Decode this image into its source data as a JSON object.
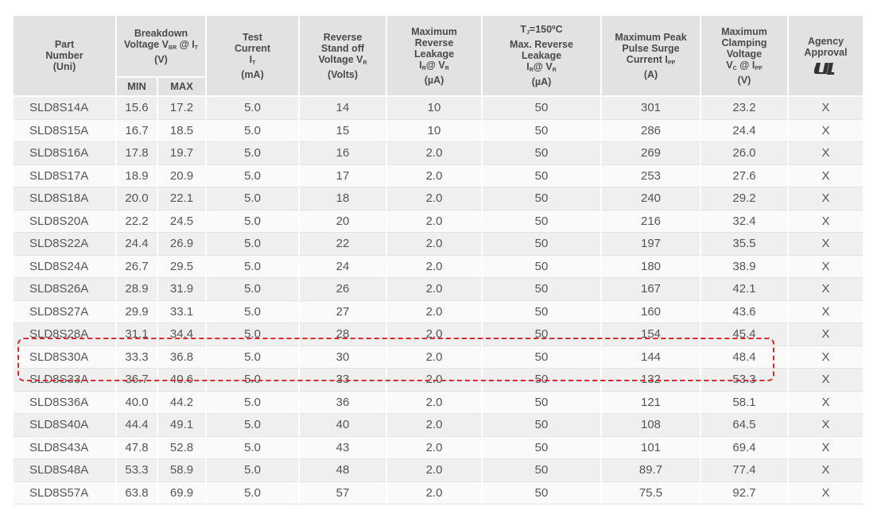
{
  "header": {
    "columns": [
      {
        "lines": [
          [
            {
              "t": "Part"
            }
          ],
          [
            {
              "t": "Number"
            }
          ],
          [
            {
              "t": "(Uni)"
            }
          ]
        ]
      },
      {
        "lines": [
          [
            {
              "t": "Breakdown"
            }
          ],
          [
            {
              "t": "Voltage V"
            },
            {
              "t": "BR",
              "sub": true
            },
            {
              "t": " @ I"
            },
            {
              "t": "T",
              "sub": true
            }
          ],
          [
            {
              "t": "(V)"
            }
          ]
        ]
      },
      {
        "lines": [
          [
            {
              "t": "Test"
            }
          ],
          [
            {
              "t": "Current"
            }
          ],
          [
            {
              "t": "I"
            },
            {
              "t": "T",
              "sub": true
            }
          ],
          [
            {
              "t": "(mA)"
            }
          ]
        ]
      },
      {
        "lines": [
          [
            {
              "t": "Reverse"
            }
          ],
          [
            {
              "t": "Stand off"
            }
          ],
          [
            {
              "t": "Voltage V"
            },
            {
              "t": "R",
              "sub": true
            }
          ],
          [
            {
              "t": "(Volts)"
            }
          ]
        ]
      },
      {
        "lines": [
          [
            {
              "t": "Maximum"
            }
          ],
          [
            {
              "t": "Reverse"
            }
          ],
          [
            {
              "t": "Leakage"
            }
          ],
          [
            {
              "t": "I"
            },
            {
              "t": "R",
              "sub": true
            },
            {
              "t": "@ V"
            },
            {
              "t": "R",
              "sub": true
            }
          ],
          [
            {
              "t": "(µA)"
            }
          ]
        ]
      },
      {
        "lines": [
          [
            {
              "t": "T"
            },
            {
              "t": "J",
              "sub": true
            },
            {
              "t": "=150ºC"
            }
          ],
          [
            {
              "t": "Max. Reverse"
            }
          ],
          [
            {
              "t": "Leakage"
            }
          ],
          [
            {
              "t": "I"
            },
            {
              "t": "R",
              "sub": true
            },
            {
              "t": "@ V"
            },
            {
              "t": "R",
              "sub": true
            }
          ],
          [
            {
              "t": "(µA)"
            }
          ]
        ]
      },
      {
        "lines": [
          [
            {
              "t": "Maximum Peak"
            }
          ],
          [
            {
              "t": "Pulse Surge"
            }
          ],
          [
            {
              "t": "Current I"
            },
            {
              "t": "PP",
              "sub": true
            }
          ],
          [
            {
              "t": "(A)"
            }
          ]
        ]
      },
      {
        "lines": [
          [
            {
              "t": "Maximum"
            }
          ],
          [
            {
              "t": "Clamping"
            }
          ],
          [
            {
              "t": "Voltage"
            }
          ],
          [
            {
              "t": "V"
            },
            {
              "t": "C",
              "sub": true
            },
            {
              "t": " @ I"
            },
            {
              "t": "PP",
              "sub": true
            }
          ],
          [
            {
              "t": "(V)"
            }
          ]
        ]
      },
      {
        "lines": [
          [
            {
              "t": "Agency"
            }
          ],
          [
            {
              "t": "Approval"
            }
          ]
        ]
      }
    ],
    "sub_columns": [
      "MIN",
      "MAX"
    ]
  },
  "table": {
    "rows": [
      [
        "SLD8S14A",
        "15.6",
        "17.2",
        "5.0",
        "14",
        "10",
        "50",
        "301",
        "23.2",
        "X"
      ],
      [
        "SLD8S15A",
        "16.7",
        "18.5",
        "5.0",
        "15",
        "10",
        "50",
        "286",
        "24.4",
        "X"
      ],
      [
        "SLD8S16A",
        "17.8",
        "19.7",
        "5.0",
        "16",
        "2.0",
        "50",
        "269",
        "26.0",
        "X"
      ],
      [
        "SLD8S17A",
        "18.9",
        "20.9",
        "5.0",
        "17",
        "2.0",
        "50",
        "253",
        "27.6",
        "X"
      ],
      [
        "SLD8S18A",
        "20.0",
        "22.1",
        "5.0",
        "18",
        "2.0",
        "50",
        "240",
        "29.2",
        "X"
      ],
      [
        "SLD8S20A",
        "22.2",
        "24.5",
        "5.0",
        "20",
        "2.0",
        "50",
        "216",
        "32.4",
        "X"
      ],
      [
        "SLD8S22A",
        "24.4",
        "26.9",
        "5.0",
        "22",
        "2.0",
        "50",
        "197",
        "35.5",
        "X"
      ],
      [
        "SLD8S24A",
        "26.7",
        "29.5",
        "5.0",
        "24",
        "2.0",
        "50",
        "180",
        "38.9",
        "X"
      ],
      [
        "SLD8S26A",
        "28.9",
        "31.9",
        "5.0",
        "26",
        "2.0",
        "50",
        "167",
        "42.1",
        "X"
      ],
      [
        "SLD8S27A",
        "29.9",
        "33.1",
        "5.0",
        "27",
        "2.0",
        "50",
        "160",
        "43.6",
        "X"
      ],
      [
        "SLD8S28A",
        "31.1",
        "34.4",
        "5.0",
        "28",
        "2.0",
        "50",
        "154",
        "45.4",
        "X"
      ],
      [
        "SLD8S30A",
        "33.3",
        "36.8",
        "5.0",
        "30",
        "2.0",
        "50",
        "144",
        "48.4",
        "X"
      ],
      [
        "SLD8S33A",
        "36.7",
        "40.6",
        "5.0",
        "33",
        "2.0",
        "50",
        "132",
        "53.3",
        "X"
      ],
      [
        "SLD8S36A",
        "40.0",
        "44.2",
        "5.0",
        "36",
        "2.0",
        "50",
        "121",
        "58.1",
        "X"
      ],
      [
        "SLD8S40A",
        "44.4",
        "49.1",
        "5.0",
        "40",
        "2.0",
        "50",
        "108",
        "64.5",
        "X"
      ],
      [
        "SLD8S43A",
        "47.8",
        "52.8",
        "5.0",
        "43",
        "2.0",
        "50",
        "101",
        "69.4",
        "X"
      ],
      [
        "SLD8S48A",
        "53.3",
        "58.9",
        "5.0",
        "48",
        "2.0",
        "50",
        "89.7",
        "77.4",
        "X"
      ],
      [
        "SLD8S57A",
        "63.8",
        "69.9",
        "5.0",
        "57",
        "2.0",
        "50",
        "75.5",
        "92.7",
        "X"
      ]
    ]
  }
}
